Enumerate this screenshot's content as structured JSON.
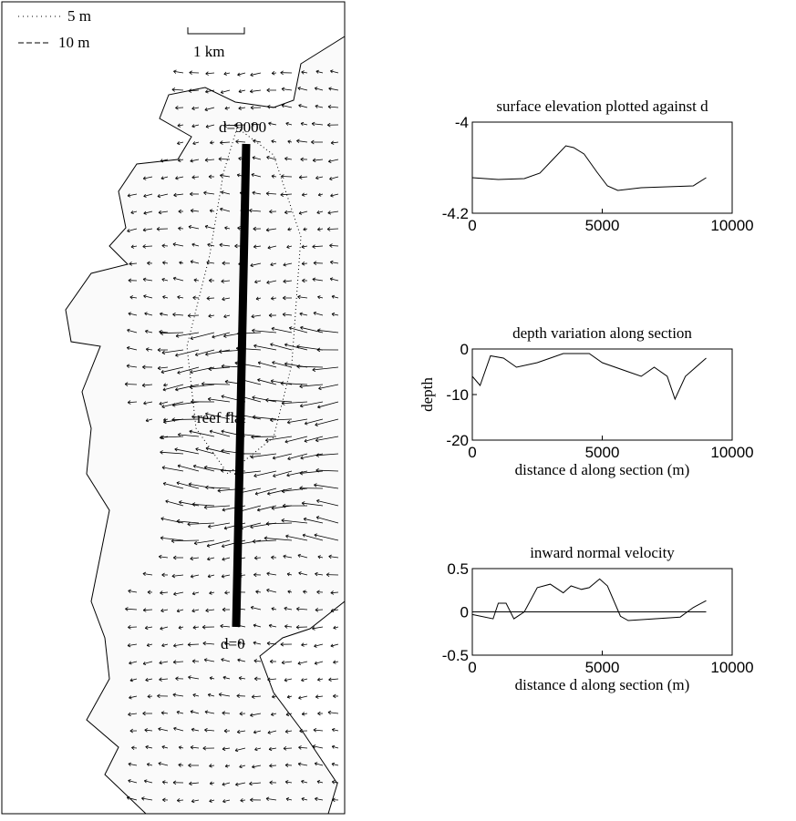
{
  "map": {
    "legend": [
      "5 m",
      "10 m"
    ],
    "scale": "1 km",
    "labels": [
      "d=9000",
      "d=0",
      "reef flat"
    ]
  },
  "chart_data": [
    {
      "type": "line",
      "title": "surface elevation plotted against d",
      "x": [
        0,
        1000,
        2000,
        2600,
        3100,
        3600,
        3900,
        4300,
        4800,
        5200,
        5600,
        6500,
        7500,
        8500,
        9000
      ],
      "values": [
        -4.122,
        -4.126,
        -4.124,
        -4.112,
        -4.082,
        -4.052,
        -4.056,
        -4.07,
        -4.11,
        -4.14,
        -4.15,
        -4.144,
        -4.142,
        -4.14,
        -4.122
      ],
      "color": "#000000",
      "xlim": [
        0,
        10000
      ],
      "xticks": [
        0,
        5000,
        10000
      ],
      "ylim": [
        -4.2,
        -4
      ],
      "yticks": [
        -4.2,
        -4
      ]
    },
    {
      "type": "line",
      "title": "depth variation along section",
      "xlabel": "distance d along section (m)",
      "ylabel": "depth",
      "x": [
        0,
        300,
        700,
        1200,
        1700,
        2500,
        3500,
        4500,
        5000,
        6000,
        6500,
        7000,
        7500,
        7800,
        8200,
        9000
      ],
      "values": [
        -6,
        -8,
        -1.5,
        -2,
        -4,
        -3,
        -1,
        -1,
        -3,
        -5,
        -6,
        -4,
        -6,
        -11,
        -6,
        -2
      ],
      "color": "#000000",
      "xlim": [
        0,
        10000
      ],
      "xticks": [
        0,
        5000,
        10000
      ],
      "ylim": [
        -20,
        0
      ],
      "yticks": [
        -20,
        -10,
        0
      ]
    },
    {
      "type": "line",
      "title": "inward normal velocity",
      "xlabel": "distance d along section (m)",
      "x": [
        0,
        800,
        1000,
        1300,
        1600,
        2000,
        2500,
        3000,
        3500,
        3800,
        4200,
        4500,
        4900,
        5200,
        5700,
        6000,
        7000,
        8000,
        8500,
        9000
      ],
      "values": [
        -0.03,
        -0.08,
        0.1,
        0.1,
        -0.08,
        0,
        0.28,
        0.32,
        0.22,
        0.3,
        0.26,
        0.28,
        0.38,
        0.3,
        -0.05,
        -0.1,
        -0.08,
        -0.06,
        0.05,
        0.13
      ],
      "hline": 0,
      "color": "#000000",
      "xlim": [
        0,
        10000
      ],
      "xticks": [
        0,
        5000,
        10000
      ],
      "ylim": [
        -0.5,
        0.5
      ],
      "yticks": [
        -0.5,
        0,
        0.5
      ]
    }
  ]
}
